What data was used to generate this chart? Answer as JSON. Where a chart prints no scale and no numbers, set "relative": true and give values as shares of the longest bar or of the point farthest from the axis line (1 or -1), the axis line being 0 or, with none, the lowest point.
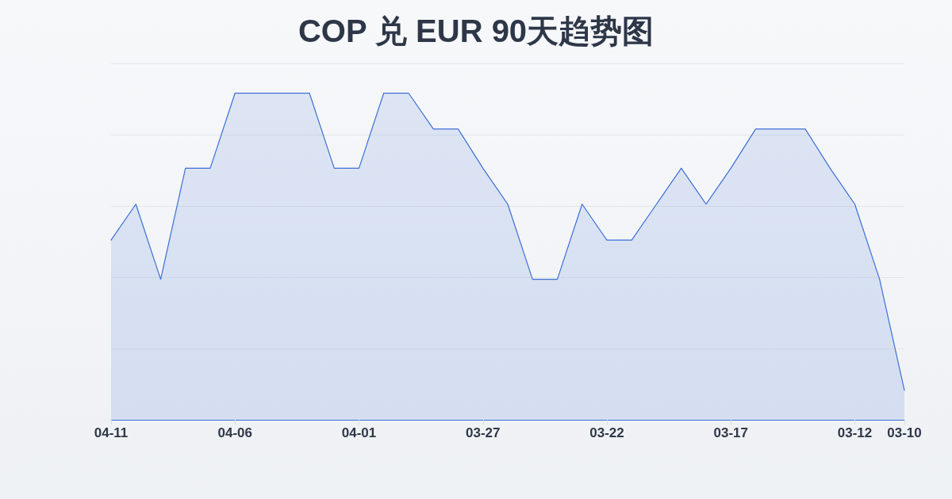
{
  "chart_data": {
    "type": "area",
    "title": "COP 兑 EUR 90天趋势图",
    "categories": [
      "04-11",
      null,
      null,
      null,
      null,
      "04-06",
      null,
      null,
      null,
      null,
      "04-01",
      null,
      null,
      null,
      null,
      "03-27",
      null,
      null,
      null,
      null,
      "03-22",
      null,
      null,
      null,
      null,
      "03-17",
      null,
      null,
      null,
      null,
      "03-12",
      null,
      "03-10"
    ],
    "values": [
      0.55,
      0.66,
      0.43,
      0.77,
      0.77,
      1,
      1,
      1,
      1,
      0.77,
      0.77,
      1,
      1,
      0.89,
      0.89,
      0.77,
      0.66,
      0.43,
      0.43,
      0.66,
      0.55,
      0.55,
      0.66,
      0.77,
      0.66,
      0.77,
      0.89,
      0.89,
      0.89,
      0.77,
      0.66,
      0.43,
      0.09
    ],
    "color": "#3d6fd6",
    "relative": true,
    "grid": "y",
    "marker": "none",
    "line_style": "solid"
  }
}
